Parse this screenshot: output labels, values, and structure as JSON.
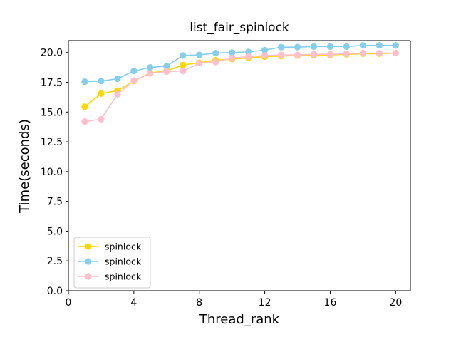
{
  "chart_data": {
    "type": "line",
    "title": "list_fair_spinlock",
    "xlabel": "Thread_rank",
    "ylabel": "Time(seconds)",
    "xlim": [
      0,
      20.9
    ],
    "ylim": [
      0,
      21.0
    ],
    "xticks": [
      0,
      4,
      8,
      12,
      16,
      20
    ],
    "yticks": [
      0.0,
      2.5,
      5.0,
      7.5,
      10.0,
      12.5,
      15.0,
      17.5,
      20.0
    ],
    "xtick_labels": [
      "0",
      "4",
      "8",
      "12",
      "16",
      "20"
    ],
    "ytick_labels": [
      "0.0",
      "2.5",
      "5.0",
      "7.5",
      "10.0",
      "12.5",
      "15.0",
      "17.5",
      "20.0"
    ],
    "grid": false,
    "legend_position": "lower-left",
    "x": [
      1,
      2,
      3,
      4,
      5,
      6,
      7,
      8,
      9,
      10,
      11,
      12,
      13,
      14,
      15,
      16,
      17,
      18,
      19,
      20
    ],
    "series": [
      {
        "name": "spinlock",
        "color": "#FFD700",
        "marker": "circle",
        "values": [
          15.45,
          16.55,
          16.8,
          17.6,
          18.3,
          18.45,
          18.95,
          19.15,
          19.35,
          19.45,
          19.55,
          19.65,
          19.7,
          19.75,
          19.8,
          19.8,
          19.85,
          19.9,
          19.9,
          19.95
        ]
      },
      {
        "name": "spinlock",
        "color": "#87CEEB",
        "marker": "circle",
        "values": [
          17.55,
          17.6,
          17.8,
          18.45,
          18.75,
          18.85,
          19.75,
          19.8,
          19.95,
          20.0,
          20.05,
          20.2,
          20.45,
          20.45,
          20.5,
          20.5,
          20.5,
          20.6,
          20.6,
          20.6
        ]
      },
      {
        "name": "spinlock",
        "color": "#FFC0CB",
        "marker": "circle",
        "values": [
          14.2,
          14.4,
          16.5,
          17.65,
          18.25,
          18.4,
          18.45,
          19.1,
          19.2,
          19.55,
          19.65,
          19.75,
          19.8,
          19.8,
          19.85,
          19.85,
          19.9,
          19.95,
          19.95,
          19.95
        ]
      }
    ]
  }
}
